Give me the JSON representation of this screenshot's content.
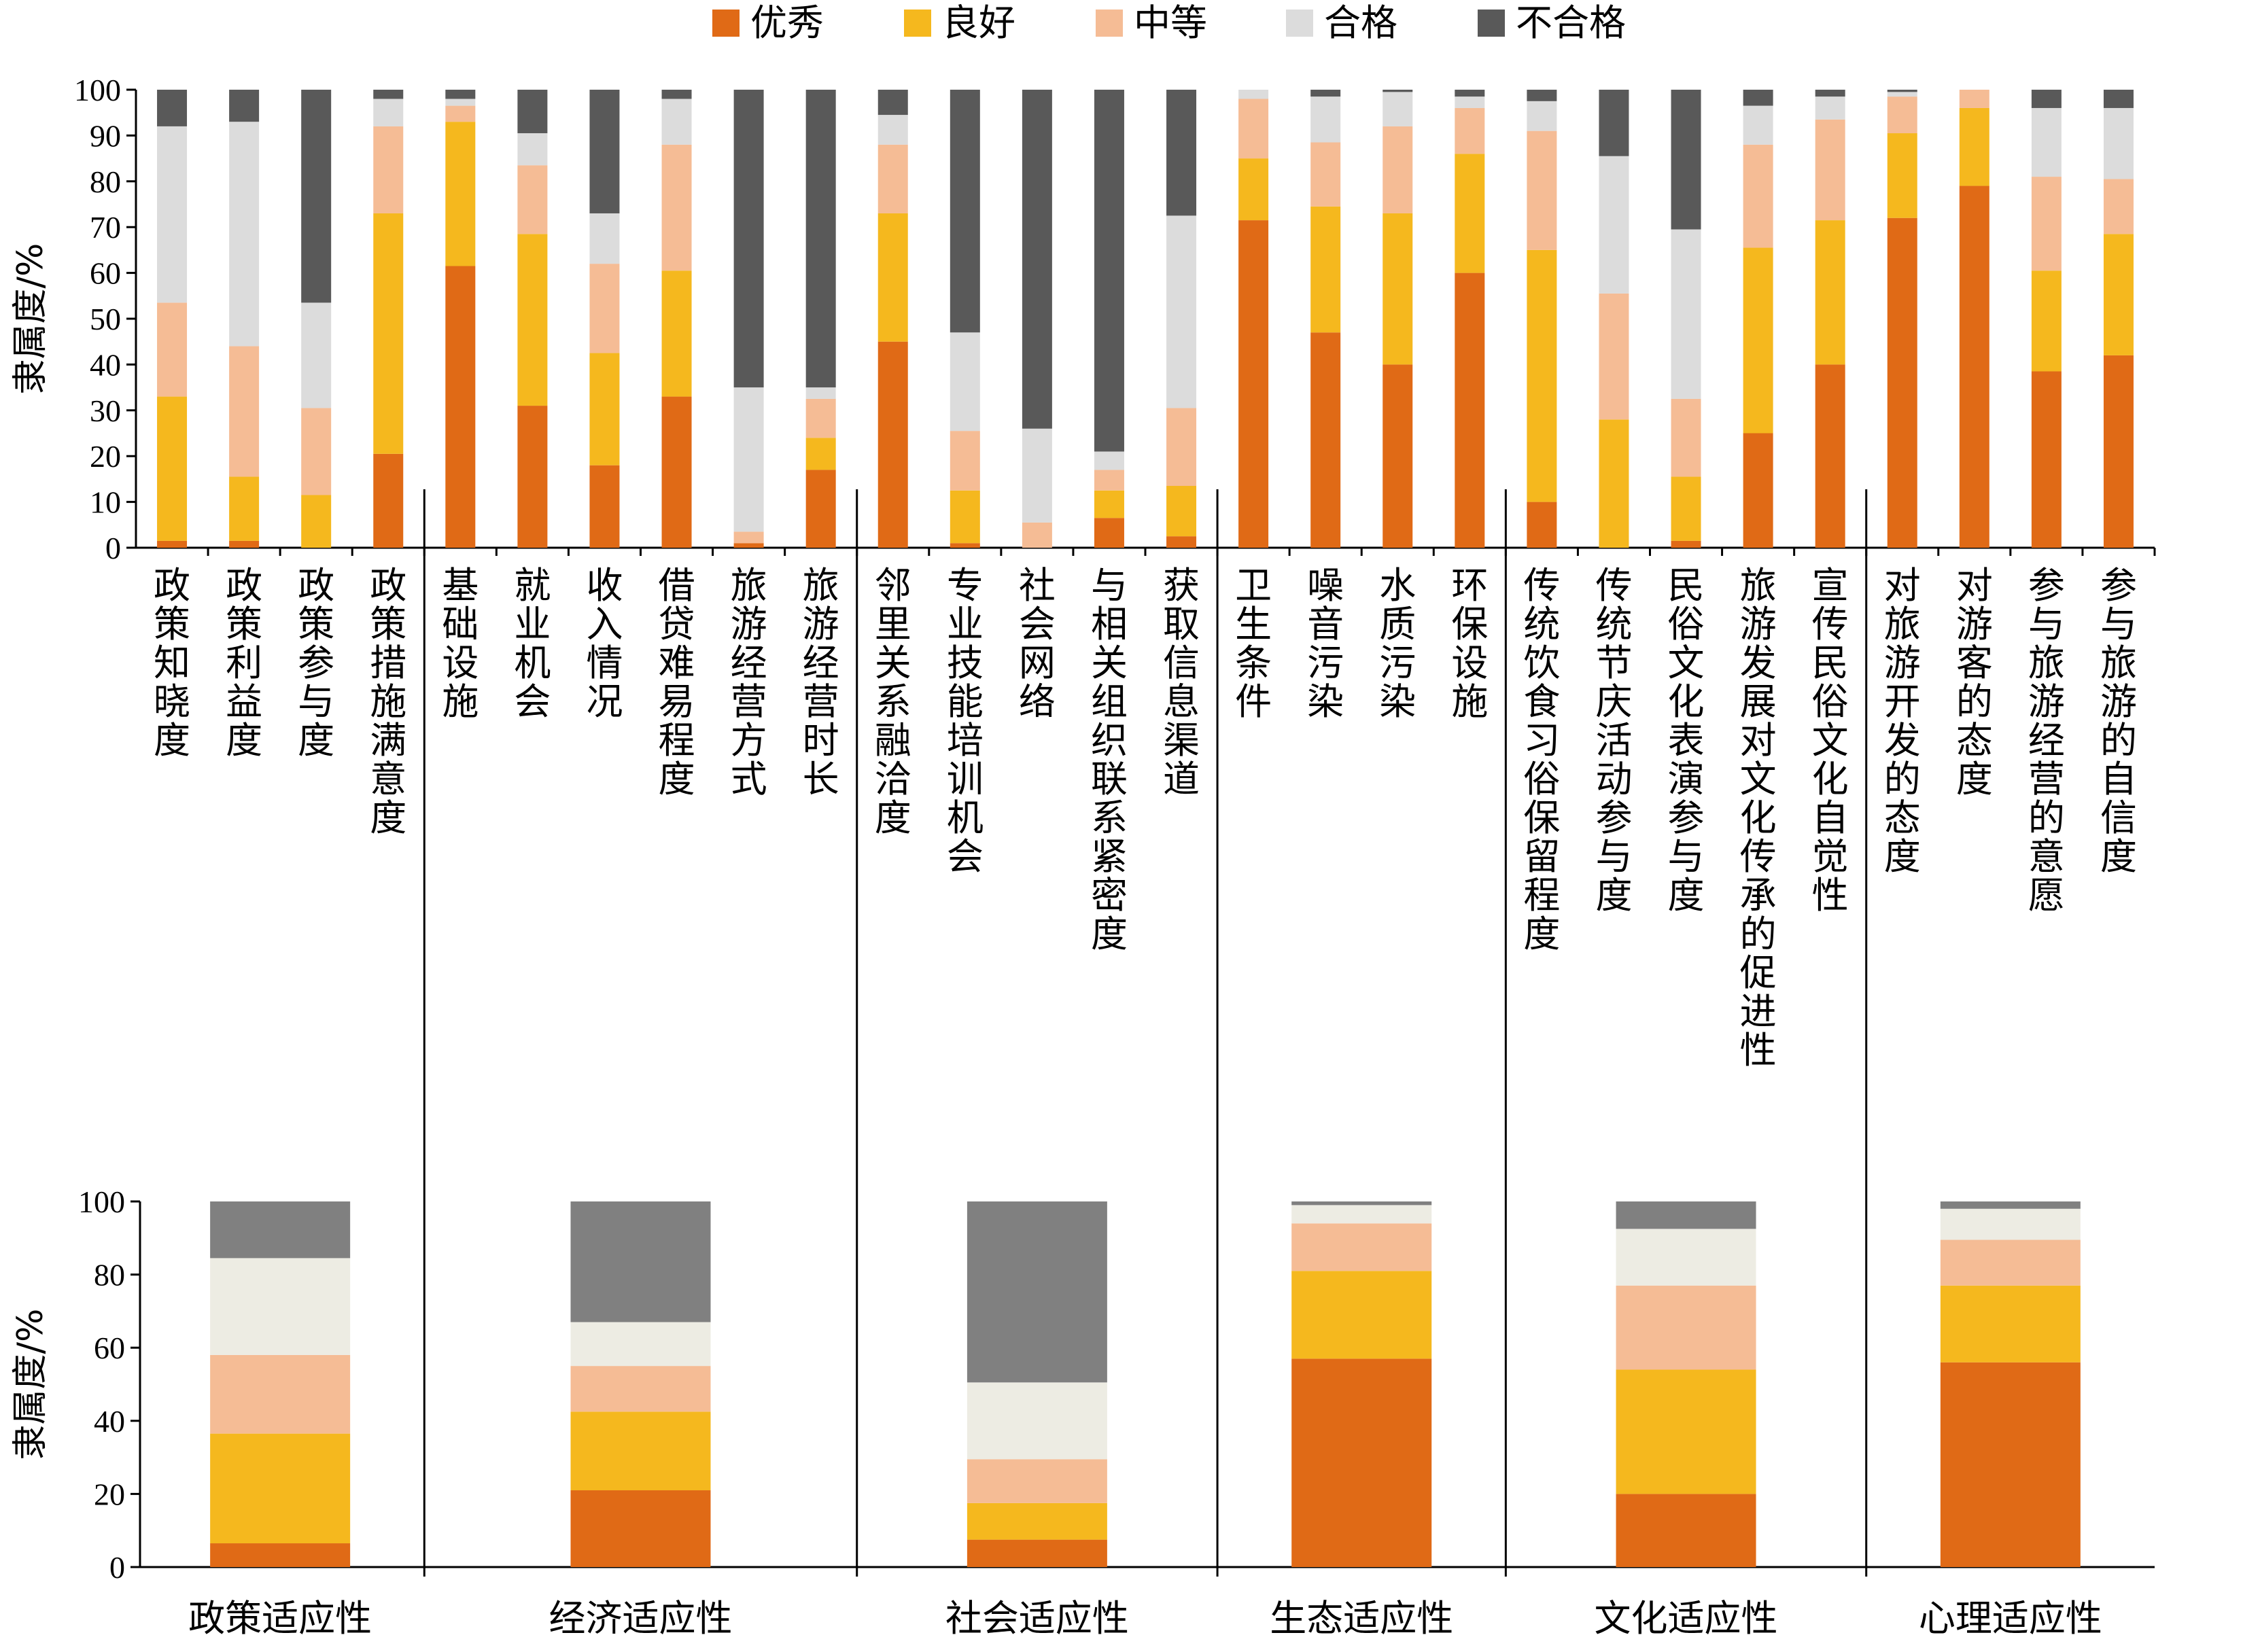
{
  "chart_data": [
    {
      "type": "bar",
      "stacked": true,
      "ylabel": "隶属度/%",
      "ylim": [
        0,
        100
      ],
      "yticks": [
        "0",
        "10",
        "20",
        "30",
        "40",
        "50",
        "60",
        "70",
        "80",
        "90",
        "100"
      ],
      "legend": {
        "position": "top"
      },
      "categories": [
        "政策知晓度",
        "政策利益度",
        "政策参与度",
        "政策措施满意度",
        "基础设施",
        "就业机会",
        "收入情况",
        "借贷难易程度",
        "旅游经营方式",
        "旅游经营时长",
        "邻里关系融洽度",
        "专业技能培训机会",
        "社会网络",
        "与相关组织联系紧密度",
        "获取信息渠道",
        "卫生条件",
        "噪音污染",
        "水质污染",
        "环保设施",
        "传统饮食习俗保留程度",
        "传统节庆活动参与度",
        "民俗文化表演参与度",
        "旅游发展对文化传承的促进性",
        "宣传民俗文化自觉性",
        "对旅游开发的态度",
        "对游客的态度",
        "参与旅游经营的意愿",
        "参与旅游的自信度"
      ],
      "groups": [
        {
          "label": "政策适应性",
          "count": 4
        },
        {
          "label": "经济适应性",
          "count": 6
        },
        {
          "label": "社会适应性",
          "count": 5
        },
        {
          "label": "生态适应性",
          "count": 4
        },
        {
          "label": "文化适应性",
          "count": 5
        },
        {
          "label": "心理适应性",
          "count": 4
        }
      ],
      "series": [
        {
          "name": "优秀",
          "color": "#E06A16",
          "values": [
            1.5,
            1.5,
            0,
            20.5,
            61.5,
            31,
            18,
            33,
            1,
            17,
            45,
            1,
            0,
            6.5,
            2.5,
            71.5,
            47,
            40,
            60,
            10,
            0,
            1.5,
            25,
            40,
            72,
            79,
            38.5,
            42
          ]
        },
        {
          "name": "良好",
          "color": "#F5B81E",
          "values": [
            31.5,
            14,
            11.5,
            52.5,
            31.5,
            37.5,
            24.5,
            27.5,
            0,
            7,
            28,
            11.5,
            0,
            6,
            11,
            13.5,
            27.5,
            33,
            26,
            55,
            28,
            14,
            40.5,
            31.5,
            18.5,
            17,
            22,
            26.5
          ]
        },
        {
          "name": "中等",
          "color": "#F5BC95",
          "values": [
            20.5,
            28.5,
            19,
            19,
            3.5,
            15,
            19.5,
            27.5,
            2.5,
            8.5,
            15,
            13,
            5.5,
            4.5,
            17,
            13,
            14,
            19,
            10,
            26,
            27.5,
            17,
            22.5,
            22,
            8,
            4,
            20.5,
            12
          ]
        },
        {
          "name": "合格",
          "color": "#DCDCDC",
          "values": [
            38.5,
            49,
            23,
            6,
            1.5,
            7,
            11,
            10,
            31.5,
            2.5,
            6.5,
            21.5,
            20.5,
            4,
            42,
            2,
            10,
            7.5,
            2.5,
            6.5,
            30,
            37,
            8.5,
            5,
            1,
            0,
            15,
            15.5
          ]
        },
        {
          "name": "不合格",
          "color": "#595959",
          "values": [
            8,
            7,
            46.5,
            2,
            2,
            9.5,
            27,
            2,
            65,
            65,
            5.5,
            53,
            74,
            79,
            27.5,
            0,
            1.5,
            0.5,
            1.5,
            2.5,
            14.5,
            30.5,
            3.5,
            1.5,
            0.5,
            0,
            4,
            4
          ]
        }
      ]
    },
    {
      "type": "bar",
      "stacked": true,
      "ylabel": "隶属度/%",
      "ylim": [
        0,
        100
      ],
      "yticks": [
        "0",
        "20",
        "40",
        "60",
        "80",
        "100"
      ],
      "categories": [
        "政策适应性",
        "经济适应性",
        "社会适应性",
        "生态适应性",
        "文化适应性",
        "心理适应性"
      ],
      "series": [
        {
          "name": "优秀",
          "color": "#E06A16",
          "values": [
            6.5,
            21,
            7.5,
            57,
            20,
            56
          ]
        },
        {
          "name": "良好",
          "color": "#F5B81E",
          "values": [
            30,
            21.5,
            10,
            24,
            34,
            21
          ]
        },
        {
          "name": "中等",
          "color": "#F5BC95",
          "values": [
            21.5,
            12.5,
            12,
            13,
            23,
            12.5
          ]
        },
        {
          "name": "合格",
          "color": "#EDECE3",
          "values": [
            26.5,
            12,
            21,
            5,
            15.5,
            8.5
          ]
        },
        {
          "name": "不合格",
          "color": "#808080",
          "values": [
            15.5,
            33,
            49.5,
            1,
            7.5,
            2
          ]
        }
      ]
    }
  ]
}
